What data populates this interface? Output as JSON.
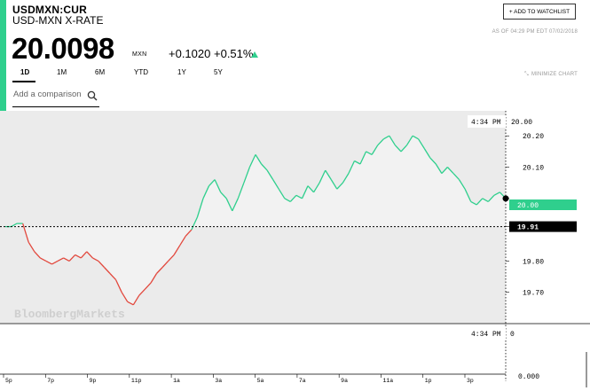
{
  "quote": {
    "ticker": "USDMXN:CUR",
    "name": "USD-MXN X-RATE",
    "price": "20.0098",
    "unit": "MXN",
    "change": "+0.1020",
    "change_pct": "+0.51%",
    "as_of": "AS OF 04:29 PM EDT 07/02/2018"
  },
  "watchlist_label": "+ ADD TO WATCHLIST",
  "tabs": [
    {
      "label": "1D",
      "active": true
    },
    {
      "label": "1M",
      "active": false
    },
    {
      "label": "6M",
      "active": false
    },
    {
      "label": "YTD",
      "active": false
    },
    {
      "label": "1Y",
      "active": false
    },
    {
      "label": "5Y",
      "active": false
    }
  ],
  "minimize_label": "MINIMIZE CHART",
  "comparison": {
    "placeholder": "Add a comparison"
  },
  "watermark": "BloombergMarkets",
  "colors": {
    "up": "#2fcf8d",
    "down": "#e2483d",
    "accent": "#2fcf8d"
  },
  "chart_data": {
    "type": "line",
    "x_axis_ticks": [
      "5p",
      "7p",
      "9p",
      "11p",
      "1a",
      "3a",
      "5a",
      "7a",
      "9a",
      "11a",
      "1p",
      "3p"
    ],
    "y_axis_ticks": [
      20.2,
      20.1,
      20.0,
      19.91,
      19.8,
      19.7
    ],
    "y_tick_labels": [
      "20.20",
      "20.10",
      "20.00",
      "19.91",
      "19.80",
      "19.70"
    ],
    "previous_close": 19.91,
    "previous_close_label": "19.91",
    "last_value": 20.0,
    "last_value_label": "20.00",
    "crosshair_time": "4:34 PM",
    "crosshair_value": "20.00",
    "ylim": [
      19.6,
      20.28
    ],
    "series": [
      {
        "values": [
          19.91,
          19.91,
          19.92,
          19.92,
          19.86,
          19.83,
          19.81,
          19.8,
          19.79,
          19.8,
          19.81,
          19.8,
          19.82,
          19.81,
          19.83,
          19.81,
          19.8,
          19.78,
          19.76,
          19.74,
          19.7,
          19.67,
          19.66,
          19.69,
          19.71,
          19.73,
          19.76,
          19.78,
          19.8,
          19.82,
          19.85,
          19.88,
          19.9,
          19.94,
          20.0,
          20.04,
          20.06,
          20.02,
          20.0,
          19.96,
          20.0,
          20.05,
          20.1,
          20.14,
          20.11,
          20.09,
          20.06,
          20.03,
          20.0,
          19.99,
          20.01,
          20.0,
          20.04,
          20.02,
          20.05,
          20.09,
          20.06,
          20.03,
          20.05,
          20.08,
          20.12,
          20.11,
          20.15,
          20.14,
          20.17,
          20.19,
          20.2,
          20.17,
          20.15,
          20.17,
          20.2,
          20.19,
          20.16,
          20.13,
          20.11,
          20.08,
          20.1,
          20.08,
          20.06,
          20.03,
          19.99,
          19.98,
          20.0,
          19.99,
          20.01,
          20.02,
          20.0
        ],
        "volume": [
          0
        ]
      }
    ],
    "volume_axis": {
      "top_label": "0",
      "bottom_label": "0.000",
      "time_label": "4:34 PM"
    }
  }
}
